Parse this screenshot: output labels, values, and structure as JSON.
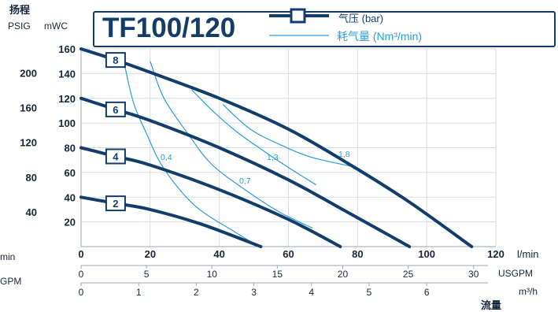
{
  "page": {
    "clipped_left_labels": [
      "min",
      "GPM"
    ]
  },
  "colors": {
    "pressure_line": "#123d6b",
    "air_line": "#2a9cd8",
    "grid": "#d6dce2",
    "axis": "#9aa5b1",
    "text": "#14263a"
  },
  "chart_data": {
    "type": "line",
    "title": "TF100/120",
    "ylabel": "扬程",
    "y_units": [
      "PSIG",
      "mWC"
    ],
    "xlabel": "流量",
    "x_units": [
      "l/min",
      "USGPM",
      "m³/h"
    ],
    "xlim": [
      0,
      120
    ],
    "ylim": [
      0,
      160
    ],
    "x_ticks_lmin": [
      0,
      20,
      40,
      60,
      80,
      100,
      120
    ],
    "x_ticks_usgpm": [
      0,
      5,
      10,
      15,
      20,
      25,
      30
    ],
    "x_ticks_m3h": [
      0,
      1,
      2,
      3,
      4,
      5,
      6
    ],
    "y_ticks_mwc": [
      20,
      40,
      60,
      80,
      100,
      120,
      140,
      160
    ],
    "y_ticks_psig": [
      40,
      80,
      120,
      160,
      200
    ],
    "grid": true,
    "legend_placement": "top",
    "legend": [
      {
        "label": "气压 (bar)"
      },
      {
        "label": "耗气量 (Nm³/min)"
      }
    ],
    "pressure_series": [
      {
        "name": "8",
        "points": [
          [
            0,
            160
          ],
          [
            10,
            151
          ],
          [
            20,
            141
          ],
          [
            40,
            120
          ],
          [
            60,
            95
          ],
          [
            78,
            66
          ],
          [
            95,
            36
          ],
          [
            113,
            0
          ]
        ]
      },
      {
        "name": "6",
        "points": [
          [
            0,
            120
          ],
          [
            10,
            111
          ],
          [
            20,
            102
          ],
          [
            40,
            80
          ],
          [
            60,
            54
          ],
          [
            77,
            28
          ],
          [
            95,
            0
          ]
        ]
      },
      {
        "name": "4",
        "points": [
          [
            0,
            80
          ],
          [
            10,
            73
          ],
          [
            20,
            66
          ],
          [
            40,
            46
          ],
          [
            60,
            22
          ],
          [
            75,
            0
          ]
        ]
      },
      {
        "name": "2",
        "points": [
          [
            0,
            40
          ],
          [
            10,
            35
          ],
          [
            20,
            30
          ],
          [
            35,
            18
          ],
          [
            52,
            0
          ]
        ]
      }
    ],
    "air_series": [
      {
        "name": "0,4",
        "points": [
          [
            12,
            155
          ],
          [
            15,
            118
          ],
          [
            19,
            91
          ],
          [
            24,
            63
          ],
          [
            33,
            33
          ],
          [
            45,
            11
          ],
          [
            51,
            1
          ]
        ]
      },
      {
        "name": "0,7",
        "points": [
          [
            20,
            150
          ],
          [
            24,
            120
          ],
          [
            31,
            91
          ],
          [
            38,
            66
          ],
          [
            49,
            43
          ],
          [
            58,
            27
          ],
          [
            67,
            15
          ]
        ]
      },
      {
        "name": "1,3",
        "points": [
          [
            32,
            127
          ],
          [
            38,
            110
          ],
          [
            45,
            93
          ],
          [
            52,
            79
          ],
          [
            60,
            64
          ],
          [
            68,
            50
          ]
        ]
      },
      {
        "name": "1,8",
        "points": [
          [
            41,
            115
          ],
          [
            49,
            95
          ],
          [
            58,
            82
          ],
          [
            67,
            72
          ],
          [
            80,
            64
          ]
        ]
      }
    ]
  }
}
